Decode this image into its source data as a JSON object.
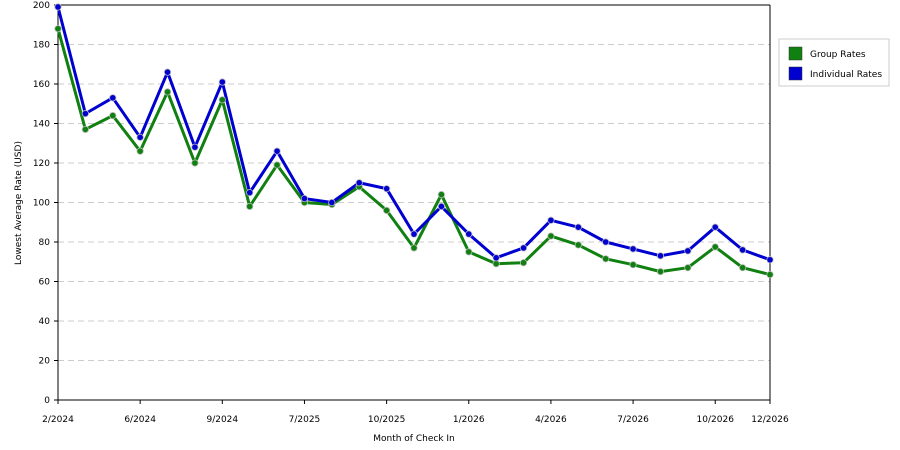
{
  "chart_data": {
    "type": "line",
    "title": "",
    "xlabel": "Month of Check In",
    "ylabel": "Lowest Average Rate (USD)",
    "ylim": [
      0,
      200
    ],
    "yticks": [
      0,
      20,
      40,
      60,
      80,
      100,
      120,
      140,
      160,
      180,
      200
    ],
    "grid": "horizontal dashed",
    "legend_position": "right",
    "x_tick_labels": [
      {
        "label": "2/2024",
        "index": 0
      },
      {
        "label": "6/2024",
        "index": 3
      },
      {
        "label": "9/2024",
        "index": 6
      },
      {
        "label": "7/2025",
        "index": 9
      },
      {
        "label": "10/2025",
        "index": 12
      },
      {
        "label": "1/2026",
        "index": 15
      },
      {
        "label": "4/2026",
        "index": 18
      },
      {
        "label": "7/2026",
        "index": 21
      },
      {
        "label": "10/2026",
        "index": 24
      },
      {
        "label": "12/2026",
        "index": 26
      }
    ],
    "num_points": 27,
    "series": [
      {
        "name": "Group Rates",
        "color": "#108010",
        "values": [
          188,
          137,
          144,
          126,
          156,
          120,
          152,
          98,
          119,
          100,
          99,
          108,
          96,
          77,
          104,
          75,
          69,
          69.5,
          83,
          78.5,
          71.5,
          68.5,
          65,
          67,
          77.5,
          67,
          63.5
        ]
      },
      {
        "name": "Individual Rates",
        "color": "#0000d0",
        "values": [
          199,
          145,
          153,
          133,
          166,
          128,
          161,
          105,
          126,
          102,
          100,
          110,
          107,
          84,
          98,
          84,
          72,
          77,
          91,
          87.5,
          80,
          76.5,
          73,
          75.5,
          87.5,
          76,
          71
        ]
      }
    ]
  }
}
